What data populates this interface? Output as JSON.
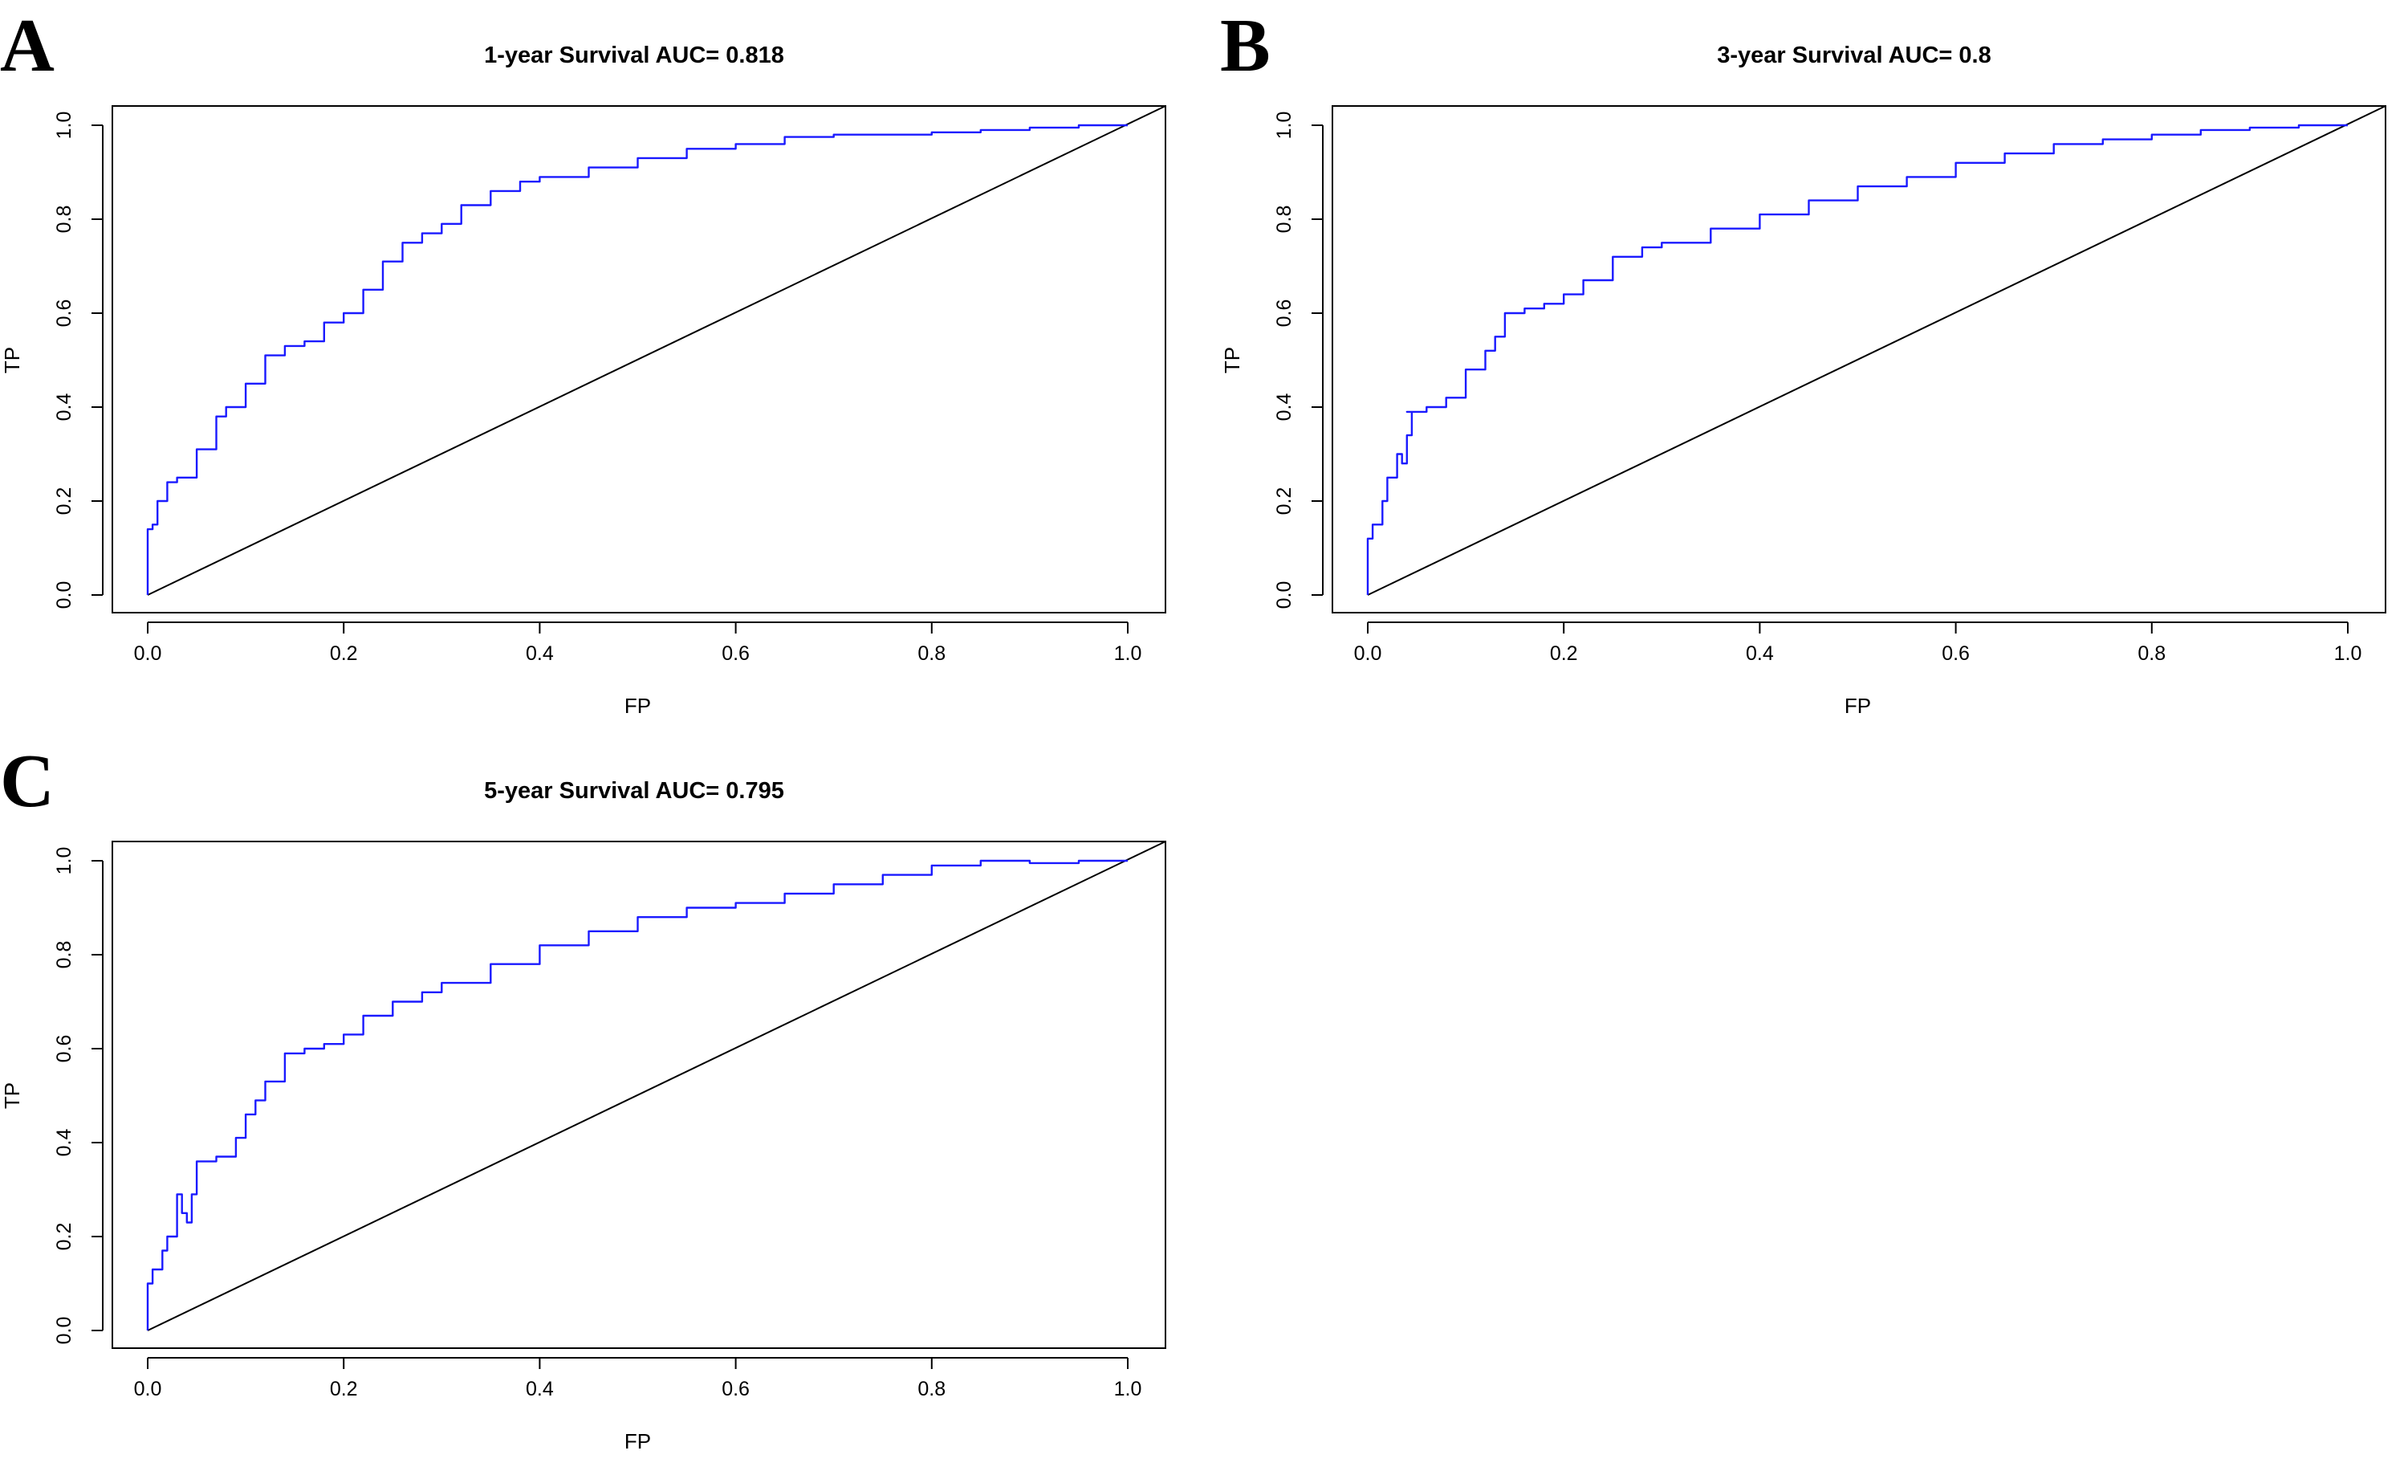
{
  "panels": [
    {
      "letter": "A",
      "title": "1-year Survival AUC= 0.818"
    },
    {
      "letter": "B",
      "title": "3-year Survival AUC= 0.8"
    },
    {
      "letter": "C",
      "title": "5-year Survival AUC= 0.795"
    }
  ],
  "axes": {
    "xlabel": "FP",
    "ylabel": "TP",
    "xticks": [
      "0.0",
      "0.2",
      "0.4",
      "0.6",
      "0.8",
      "1.0"
    ],
    "yticks": [
      "0.0",
      "0.2",
      "0.4",
      "0.6",
      "0.8",
      "1.0"
    ]
  },
  "colors": {
    "roc_line": "#1a1aff",
    "diagonal": "#000000",
    "frame": "#000000"
  },
  "chart_data": [
    {
      "type": "line",
      "title": "1-year Survival AUC= 0.818",
      "xlabel": "FP",
      "ylabel": "TP",
      "xlim": [
        0,
        1
      ],
      "ylim": [
        0,
        1
      ],
      "grid": false,
      "series": [
        {
          "x": [
            0.0,
            0.0,
            0.005,
            0.01,
            0.02,
            0.03,
            0.05,
            0.07,
            0.08,
            0.1,
            0.12,
            0.14,
            0.16,
            0.18,
            0.2,
            0.22,
            0.24,
            0.26,
            0.28,
            0.3,
            0.32,
            0.35,
            0.38,
            0.4,
            0.45,
            0.5,
            0.55,
            0.6,
            0.65,
            0.7,
            0.75,
            0.8,
            0.85,
            0.9,
            0.95,
            1.0
          ],
          "y": [
            0.0,
            0.14,
            0.15,
            0.2,
            0.24,
            0.25,
            0.31,
            0.38,
            0.4,
            0.45,
            0.51,
            0.53,
            0.54,
            0.58,
            0.6,
            0.65,
            0.71,
            0.75,
            0.77,
            0.79,
            0.83,
            0.86,
            0.88,
            0.89,
            0.91,
            0.93,
            0.95,
            0.96,
            0.975,
            0.98,
            0.98,
            0.985,
            0.99,
            0.995,
            1.0,
            1.0
          ]
        },
        {
          "x": [
            0,
            1
          ],
          "y": [
            0,
            1
          ]
        }
      ]
    },
    {
      "type": "line",
      "title": "3-year Survival AUC= 0.8",
      "xlabel": "FP",
      "ylabel": "TP",
      "xlim": [
        0,
        1
      ],
      "ylim": [
        0,
        1
      ],
      "grid": false,
      "series": [
        {
          "x": [
            0.0,
            0.0,
            0.005,
            0.015,
            0.02,
            0.03,
            0.035,
            0.04,
            0.045,
            0.04,
            0.06,
            0.08,
            0.1,
            0.12,
            0.13,
            0.14,
            0.16,
            0.18,
            0.2,
            0.22,
            0.25,
            0.28,
            0.3,
            0.35,
            0.4,
            0.45,
            0.5,
            0.55,
            0.6,
            0.65,
            0.7,
            0.75,
            0.8,
            0.85,
            0.9,
            0.95,
            1.0
          ],
          "y": [
            0.0,
            0.12,
            0.15,
            0.2,
            0.25,
            0.3,
            0.28,
            0.34,
            0.39,
            0.39,
            0.4,
            0.42,
            0.48,
            0.52,
            0.55,
            0.6,
            0.61,
            0.62,
            0.64,
            0.67,
            0.72,
            0.74,
            0.75,
            0.78,
            0.81,
            0.84,
            0.87,
            0.89,
            0.92,
            0.94,
            0.96,
            0.97,
            0.98,
            0.99,
            0.995,
            1.0,
            1.0
          ]
        },
        {
          "x": [
            0,
            1
          ],
          "y": [
            0,
            1
          ]
        }
      ]
    },
    {
      "type": "line",
      "title": "5-year Survival AUC= 0.795",
      "xlabel": "FP",
      "ylabel": "TP",
      "xlim": [
        0,
        1
      ],
      "ylim": [
        0,
        1
      ],
      "grid": false,
      "series": [
        {
          "x": [
            0.0,
            0.0,
            0.005,
            0.015,
            0.02,
            0.03,
            0.035,
            0.04,
            0.045,
            0.05,
            0.07,
            0.09,
            0.1,
            0.11,
            0.12,
            0.14,
            0.16,
            0.18,
            0.2,
            0.22,
            0.25,
            0.28,
            0.3,
            0.35,
            0.4,
            0.45,
            0.5,
            0.55,
            0.6,
            0.65,
            0.7,
            0.75,
            0.8,
            0.85,
            0.9,
            0.95,
            1.0
          ],
          "y": [
            0.0,
            0.1,
            0.13,
            0.17,
            0.2,
            0.29,
            0.25,
            0.23,
            0.29,
            0.36,
            0.37,
            0.41,
            0.46,
            0.49,
            0.53,
            0.59,
            0.6,
            0.61,
            0.63,
            0.67,
            0.7,
            0.72,
            0.74,
            0.78,
            0.82,
            0.85,
            0.88,
            0.9,
            0.91,
            0.93,
            0.95,
            0.97,
            0.99,
            1.0,
            0.995,
            1.0,
            1.0
          ]
        },
        {
          "x": [
            0,
            1
          ],
          "y": [
            0,
            1
          ]
        }
      ]
    }
  ]
}
